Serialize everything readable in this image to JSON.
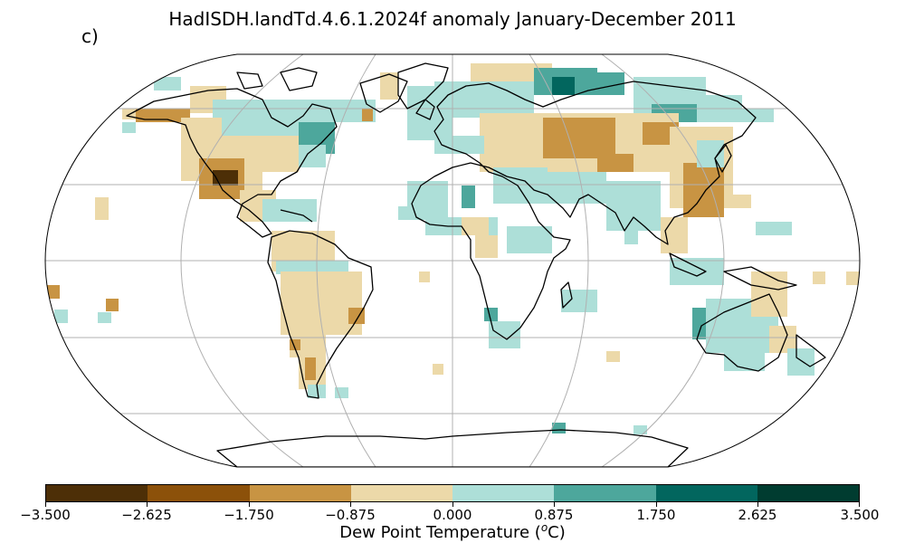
{
  "figure": {
    "title": "HadISDH.landTd.4.6.1.2024f anomaly January-December 2011",
    "panel_label": "c)",
    "projection": "Robinson",
    "gridlines": true
  },
  "colorbar": {
    "label_prefix": "Dew Point Temperature (",
    "label_unit_sup": "o",
    "label_suffix": "C)",
    "ticks": [
      "−3.500",
      "−2.625",
      "−1.750",
      "−0.875",
      "0.000",
      "0.875",
      "1.750",
      "2.625",
      "3.500"
    ],
    "colors": [
      "#4d2f07",
      "#8c510a",
      "#c89443",
      "#ecd9a9",
      "#addfd8",
      "#4da79c",
      "#02665e",
      "#003c30"
    ]
  },
  "palette": {
    "deep_brown": "#4d2f07",
    "brown": "#8c510a",
    "tan": "#c89443",
    "light_tan": "#ecd9a9",
    "light_teal": "#addfd8",
    "teal": "#4da79c",
    "dark_teal": "#02665e"
  }
}
